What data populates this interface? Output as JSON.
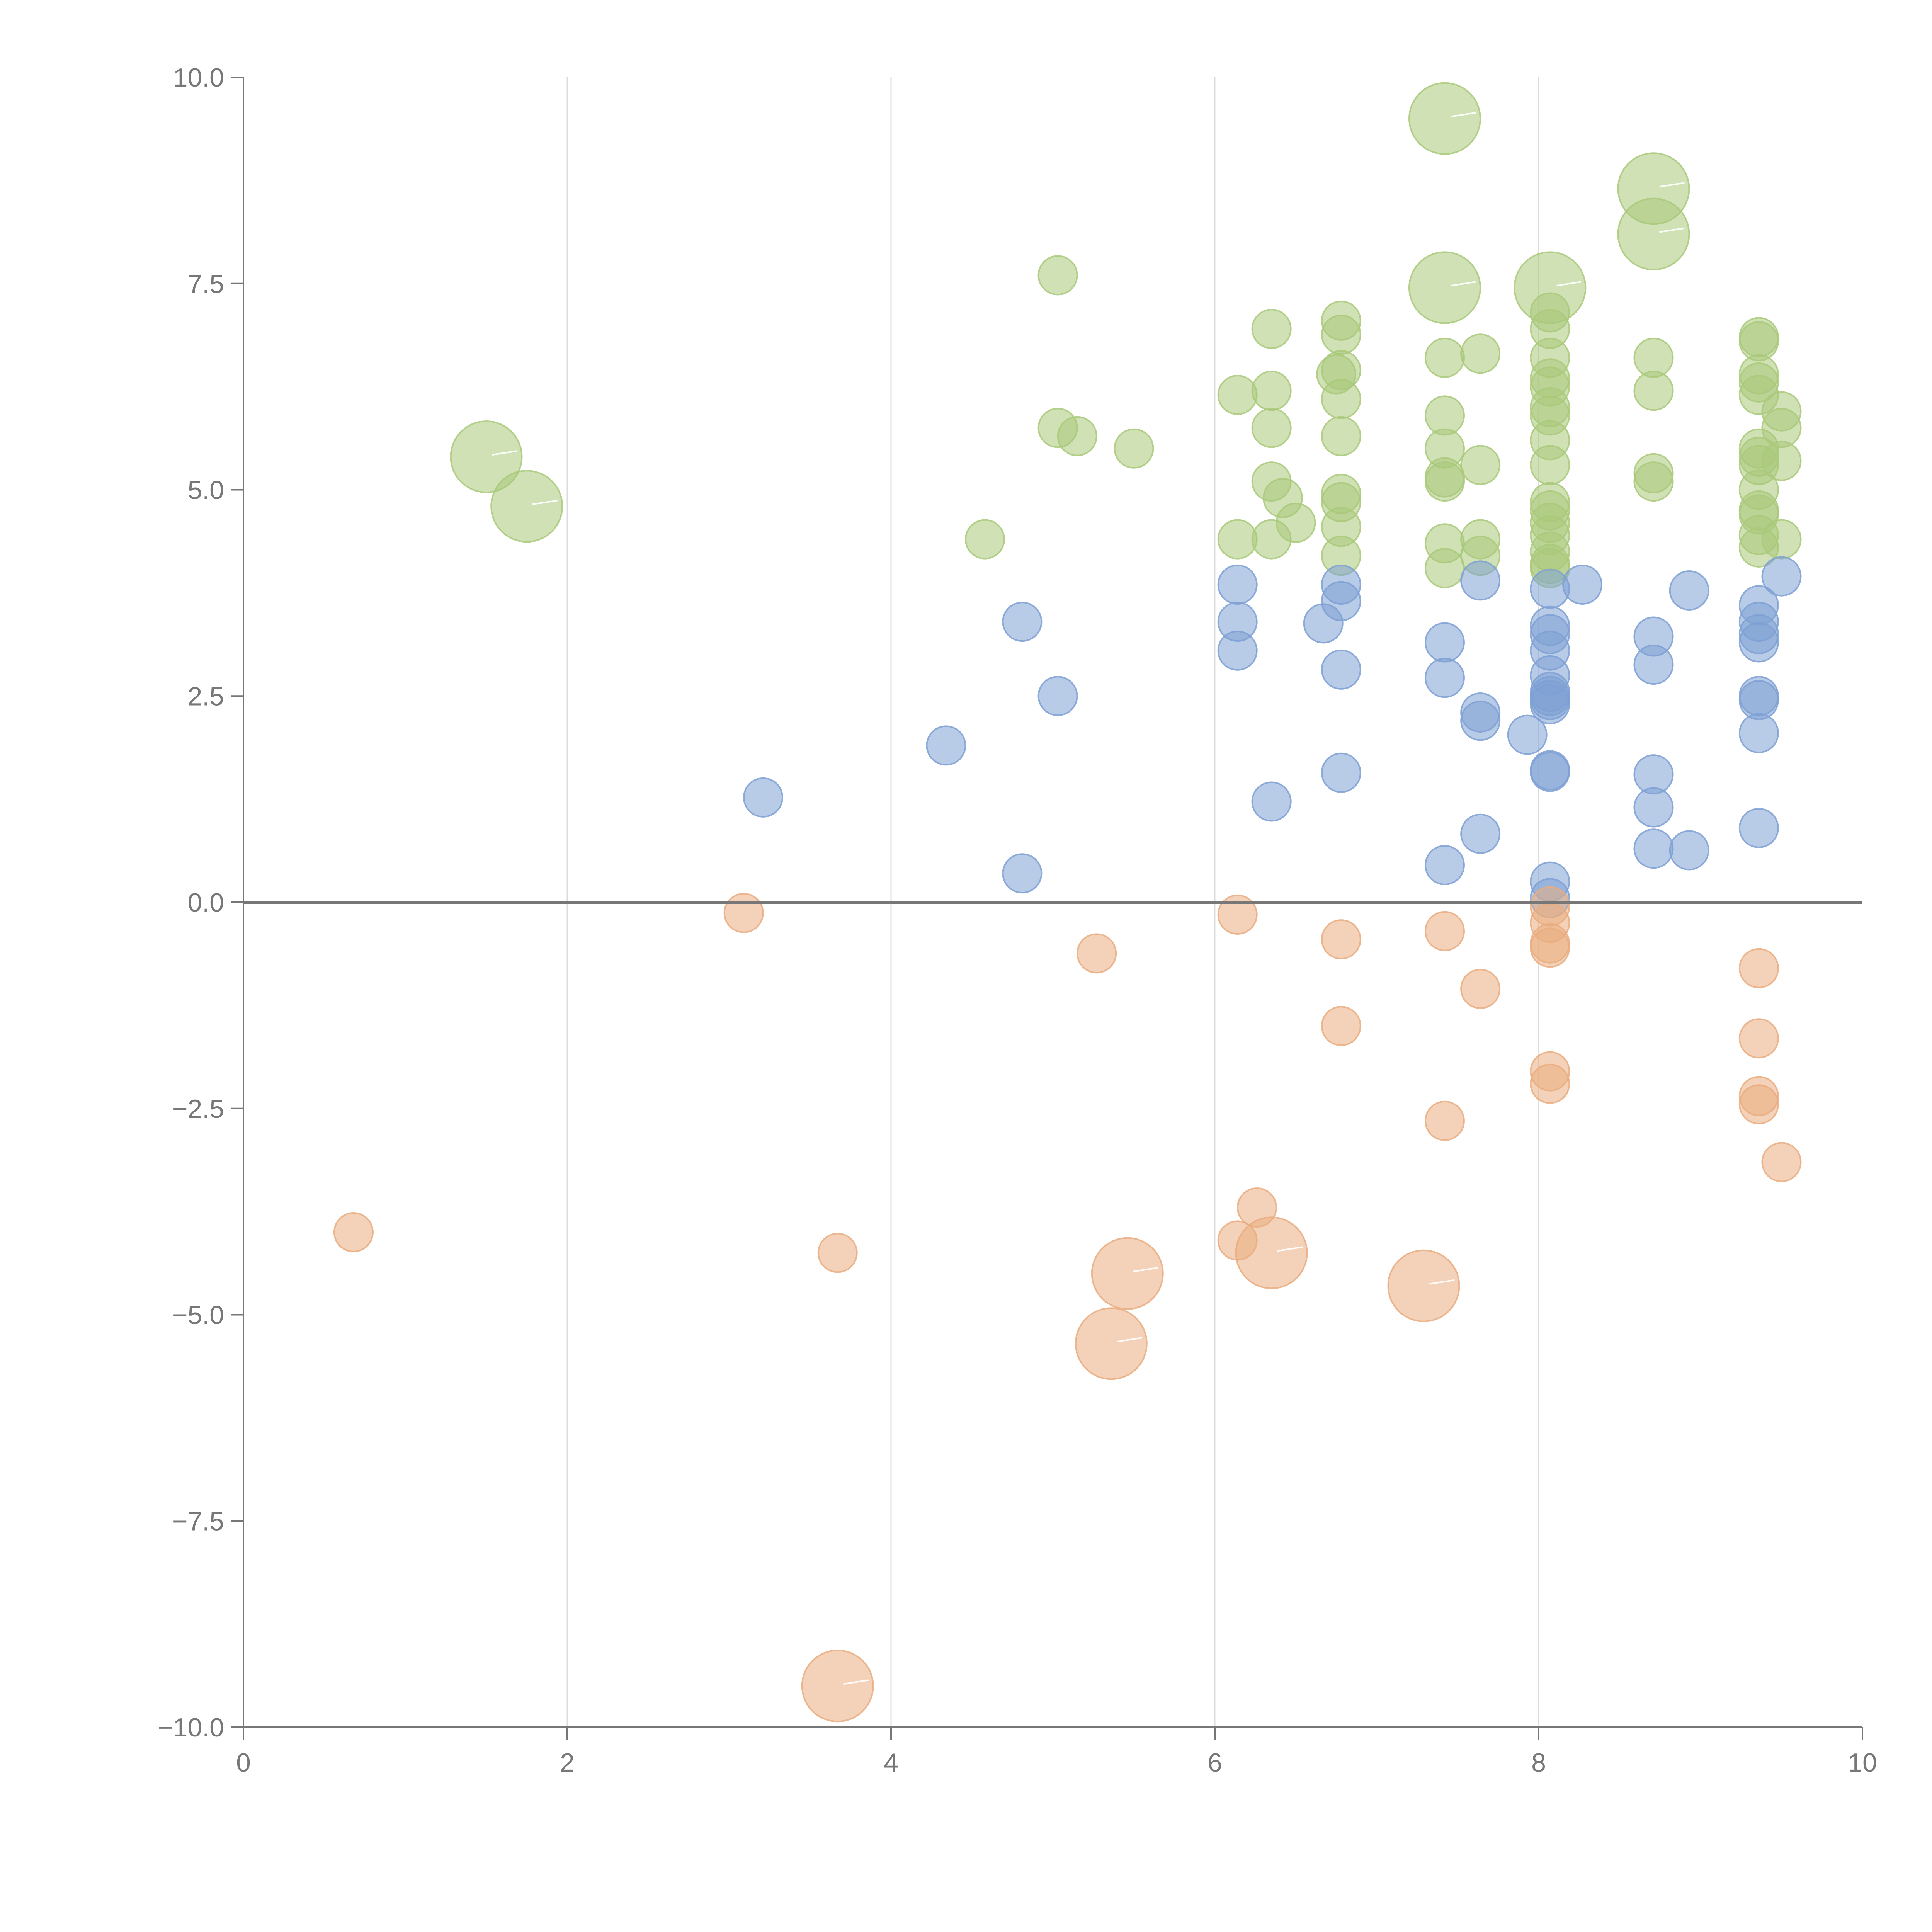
{
  "chart_data": {
    "type": "scatter",
    "xlim": [
      0,
      10
    ],
    "ylim": [
      -10,
      10
    ],
    "x_ticks": [
      0,
      2,
      4,
      6,
      8,
      10
    ],
    "y_ticks": [
      -10,
      -7.5,
      -5,
      -2.5,
      0,
      2.5,
      5,
      7.5,
      10
    ],
    "x_tick_labels": [
      "0",
      "2",
      "4",
      "6",
      "8",
      "10"
    ],
    "y_tick_labels": [
      "−10.0",
      "−7.5",
      "−5.0",
      "−2.5",
      "0.0",
      "2.5",
      "5.0",
      "7.5",
      "10.0"
    ],
    "grid": "vertical",
    "zero_line": true,
    "series": [
      {
        "color": "#a9c97a",
        "points": [
          {
            "x": 1.5,
            "y": 5.4,
            "s": 3
          },
          {
            "x": 1.75,
            "y": 4.8,
            "s": 3
          },
          {
            "x": 4.58,
            "y": 4.4,
            "s": 1
          },
          {
            "x": 5.03,
            "y": 7.6,
            "s": 1
          },
          {
            "x": 5.03,
            "y": 5.75,
            "s": 1
          },
          {
            "x": 5.15,
            "y": 5.65,
            "s": 1
          },
          {
            "x": 5.5,
            "y": 5.5,
            "s": 1
          },
          {
            "x": 6.14,
            "y": 6.15,
            "s": 1
          },
          {
            "x": 6.14,
            "y": 4.4,
            "s": 1
          },
          {
            "x": 6.35,
            "y": 6.95,
            "s": 1
          },
          {
            "x": 6.35,
            "y": 6.2,
            "s": 1
          },
          {
            "x": 6.35,
            "y": 5.75,
            "s": 1
          },
          {
            "x": 6.35,
            "y": 5.1,
            "s": 1
          },
          {
            "x": 6.35,
            "y": 4.4,
            "s": 1
          },
          {
            "x": 6.42,
            "y": 4.9,
            "s": 1
          },
          {
            "x": 6.5,
            "y": 4.6,
            "s": 1
          },
          {
            "x": 6.75,
            "y": 6.4,
            "s": 1
          },
          {
            "x": 6.78,
            "y": 7.05,
            "s": 1
          },
          {
            "x": 6.78,
            "y": 6.88,
            "s": 1
          },
          {
            "x": 6.78,
            "y": 6.45,
            "s": 1
          },
          {
            "x": 6.78,
            "y": 6.1,
            "s": 1
          },
          {
            "x": 6.78,
            "y": 5.65,
            "s": 1
          },
          {
            "x": 6.78,
            "y": 4.95,
            "s": 1
          },
          {
            "x": 6.78,
            "y": 4.85,
            "s": 1
          },
          {
            "x": 6.78,
            "y": 4.55,
            "s": 1
          },
          {
            "x": 6.78,
            "y": 4.2,
            "s": 1
          },
          {
            "x": 7.42,
            "y": 9.5,
            "s": 3
          },
          {
            "x": 7.42,
            "y": 7.45,
            "s": 3
          },
          {
            "x": 7.42,
            "y": 6.6,
            "s": 1
          },
          {
            "x": 7.42,
            "y": 5.9,
            "s": 1
          },
          {
            "x": 7.42,
            "y": 5.5,
            "s": 1
          },
          {
            "x": 7.42,
            "y": 5.15,
            "s": 1
          },
          {
            "x": 7.42,
            "y": 5.1,
            "s": 1
          },
          {
            "x": 7.42,
            "y": 4.35,
            "s": 1
          },
          {
            "x": 7.42,
            "y": 4.05,
            "s": 1
          },
          {
            "x": 7.64,
            "y": 6.65,
            "s": 1
          },
          {
            "x": 7.64,
            "y": 5.3,
            "s": 1
          },
          {
            "x": 7.64,
            "y": 4.4,
            "s": 1
          },
          {
            "x": 7.64,
            "y": 4.2,
            "s": 1
          },
          {
            "x": 8.07,
            "y": 7.45,
            "s": 3
          },
          {
            "x": 8.07,
            "y": 7.15,
            "s": 1
          },
          {
            "x": 8.07,
            "y": 6.95,
            "s": 1
          },
          {
            "x": 8.07,
            "y": 6.6,
            "s": 1
          },
          {
            "x": 8.07,
            "y": 6.35,
            "s": 1
          },
          {
            "x": 8.07,
            "y": 6.25,
            "s": 1
          },
          {
            "x": 8.07,
            "y": 6.0,
            "s": 1
          },
          {
            "x": 8.07,
            "y": 5.9,
            "s": 1
          },
          {
            "x": 8.07,
            "y": 5.6,
            "s": 1
          },
          {
            "x": 8.07,
            "y": 5.3,
            "s": 1
          },
          {
            "x": 8.07,
            "y": 4.85,
            "s": 1
          },
          {
            "x": 8.07,
            "y": 4.75,
            "s": 1
          },
          {
            "x": 8.07,
            "y": 4.6,
            "s": 1
          },
          {
            "x": 8.07,
            "y": 4.45,
            "s": 1
          },
          {
            "x": 8.07,
            "y": 4.25,
            "s": 1
          },
          {
            "x": 8.07,
            "y": 4.1,
            "s": 1
          },
          {
            "x": 8.07,
            "y": 4.05,
            "s": 1
          },
          {
            "x": 8.71,
            "y": 8.65,
            "s": 3
          },
          {
            "x": 8.71,
            "y": 8.1,
            "s": 3
          },
          {
            "x": 8.71,
            "y": 6.6,
            "s": 1
          },
          {
            "x": 8.71,
            "y": 6.2,
            "s": 1
          },
          {
            "x": 8.71,
            "y": 5.2,
            "s": 1
          },
          {
            "x": 8.71,
            "y": 5.1,
            "s": 1
          },
          {
            "x": 9.36,
            "y": 6.85,
            "s": 1
          },
          {
            "x": 9.36,
            "y": 6.8,
            "s": 1
          },
          {
            "x": 9.36,
            "y": 6.4,
            "s": 1
          },
          {
            "x": 9.36,
            "y": 6.3,
            "s": 1
          },
          {
            "x": 9.36,
            "y": 6.15,
            "s": 1
          },
          {
            "x": 9.36,
            "y": 5.5,
            "s": 1
          },
          {
            "x": 9.36,
            "y": 5.4,
            "s": 1
          },
          {
            "x": 9.36,
            "y": 5.3,
            "s": 1
          },
          {
            "x": 9.36,
            "y": 5.0,
            "s": 1
          },
          {
            "x": 9.36,
            "y": 4.75,
            "s": 1
          },
          {
            "x": 9.36,
            "y": 4.7,
            "s": 1
          },
          {
            "x": 9.36,
            "y": 4.45,
            "s": 1
          },
          {
            "x": 9.36,
            "y": 4.3,
            "s": 1
          },
          {
            "x": 9.5,
            "y": 5.95,
            "s": 1
          },
          {
            "x": 9.5,
            "y": 5.75,
            "s": 1
          },
          {
            "x": 9.5,
            "y": 5.35,
            "s": 1
          },
          {
            "x": 9.5,
            "y": 4.4,
            "s": 1
          }
        ]
      },
      {
        "color": "#7ea0d3",
        "points": [
          {
            "x": 3.21,
            "y": 1.27,
            "s": 1
          },
          {
            "x": 4.34,
            "y": 1.9,
            "s": 1
          },
          {
            "x": 4.81,
            "y": 3.4,
            "s": 1
          },
          {
            "x": 4.81,
            "y": 0.35,
            "s": 1
          },
          {
            "x": 5.03,
            "y": 2.5,
            "s": 1
          },
          {
            "x": 6.14,
            "y": 3.85,
            "s": 1
          },
          {
            "x": 6.14,
            "y": 3.4,
            "s": 1
          },
          {
            "x": 6.14,
            "y": 3.05,
            "s": 1
          },
          {
            "x": 6.35,
            "y": 1.22,
            "s": 1
          },
          {
            "x": 6.67,
            "y": 3.38,
            "s": 1
          },
          {
            "x": 6.78,
            "y": 3.85,
            "s": 1
          },
          {
            "x": 6.78,
            "y": 3.65,
            "s": 1
          },
          {
            "x": 6.78,
            "y": 2.82,
            "s": 1
          },
          {
            "x": 6.78,
            "y": 1.57,
            "s": 1
          },
          {
            "x": 7.42,
            "y": 3.15,
            "s": 1
          },
          {
            "x": 7.42,
            "y": 2.72,
            "s": 1
          },
          {
            "x": 7.42,
            "y": 0.45,
            "s": 1
          },
          {
            "x": 7.64,
            "y": 3.9,
            "s": 1
          },
          {
            "x": 7.64,
            "y": 2.3,
            "s": 1
          },
          {
            "x": 7.64,
            "y": 2.2,
            "s": 1
          },
          {
            "x": 7.64,
            "y": 0.83,
            "s": 1
          },
          {
            "x": 7.93,
            "y": 2.03,
            "s": 1
          },
          {
            "x": 8.07,
            "y": 3.8,
            "s": 1
          },
          {
            "x": 8.07,
            "y": 3.35,
            "s": 1
          },
          {
            "x": 8.07,
            "y": 3.25,
            "s": 1
          },
          {
            "x": 8.07,
            "y": 3.05,
            "s": 1
          },
          {
            "x": 8.07,
            "y": 2.75,
            "s": 1
          },
          {
            "x": 8.07,
            "y": 2.55,
            "s": 1
          },
          {
            "x": 8.07,
            "y": 2.5,
            "s": 1
          },
          {
            "x": 8.07,
            "y": 2.45,
            "s": 1
          },
          {
            "x": 8.07,
            "y": 2.4,
            "s": 1
          },
          {
            "x": 8.07,
            "y": 1.6,
            "s": 1
          },
          {
            "x": 8.07,
            "y": 1.58,
            "s": 1
          },
          {
            "x": 8.07,
            "y": 0.25,
            "s": 1
          },
          {
            "x": 8.07,
            "y": 0.05,
            "s": 1
          },
          {
            "x": 8.27,
            "y": 3.85,
            "s": 1
          },
          {
            "x": 8.71,
            "y": 3.22,
            "s": 1
          },
          {
            "x": 8.71,
            "y": 2.88,
            "s": 1
          },
          {
            "x": 8.71,
            "y": 1.55,
            "s": 1
          },
          {
            "x": 8.71,
            "y": 1.15,
            "s": 1
          },
          {
            "x": 8.71,
            "y": 0.65,
            "s": 1
          },
          {
            "x": 8.93,
            "y": 3.78,
            "s": 1
          },
          {
            "x": 8.93,
            "y": 0.63,
            "s": 1
          },
          {
            "x": 9.36,
            "y": 3.6,
            "s": 1
          },
          {
            "x": 9.36,
            "y": 3.4,
            "s": 1
          },
          {
            "x": 9.36,
            "y": 3.25,
            "s": 1
          },
          {
            "x": 9.36,
            "y": 3.15,
            "s": 1
          },
          {
            "x": 9.36,
            "y": 2.5,
            "s": 1
          },
          {
            "x": 9.36,
            "y": 2.45,
            "s": 1
          },
          {
            "x": 9.36,
            "y": 2.05,
            "s": 1
          },
          {
            "x": 9.36,
            "y": 0.9,
            "s": 1
          },
          {
            "x": 9.5,
            "y": 3.95,
            "s": 1
          }
        ]
      },
      {
        "color": "#e9ad80",
        "points": [
          {
            "x": 0.68,
            "y": -4.0,
            "s": 1
          },
          {
            "x": 3.09,
            "y": -0.13,
            "s": 1
          },
          {
            "x": 3.67,
            "y": -4.25,
            "s": 1
          },
          {
            "x": 3.67,
            "y": -9.5,
            "s": 3
          },
          {
            "x": 5.27,
            "y": -0.62,
            "s": 1
          },
          {
            "x": 5.36,
            "y": -5.35,
            "s": 3
          },
          {
            "x": 5.46,
            "y": -4.5,
            "s": 3
          },
          {
            "x": 6.14,
            "y": -0.15,
            "s": 1
          },
          {
            "x": 6.14,
            "y": -4.1,
            "s": 1
          },
          {
            "x": 6.26,
            "y": -3.7,
            "s": 1
          },
          {
            "x": 6.35,
            "y": -4.25,
            "s": 3
          },
          {
            "x": 6.78,
            "y": -0.45,
            "s": 1
          },
          {
            "x": 6.78,
            "y": -1.5,
            "s": 1
          },
          {
            "x": 7.29,
            "y": -4.65,
            "s": 3
          },
          {
            "x": 7.42,
            "y": -0.35,
            "s": 1
          },
          {
            "x": 7.42,
            "y": -2.65,
            "s": 1
          },
          {
            "x": 7.64,
            "y": -1.05,
            "s": 1
          },
          {
            "x": 8.07,
            "y": -0.05,
            "s": 1
          },
          {
            "x": 8.07,
            "y": -0.25,
            "s": 1
          },
          {
            "x": 8.07,
            "y": -0.5,
            "s": 1
          },
          {
            "x": 8.07,
            "y": -0.55,
            "s": 1
          },
          {
            "x": 8.07,
            "y": -2.05,
            "s": 1
          },
          {
            "x": 8.07,
            "y": -2.2,
            "s": 1
          },
          {
            "x": 9.36,
            "y": -0.8,
            "s": 1
          },
          {
            "x": 9.36,
            "y": -1.65,
            "s": 1
          },
          {
            "x": 9.36,
            "y": -2.35,
            "s": 1
          },
          {
            "x": 9.36,
            "y": -2.45,
            "s": 1
          },
          {
            "x": 9.5,
            "y": -3.15,
            "s": 1
          }
        ]
      }
    ]
  }
}
